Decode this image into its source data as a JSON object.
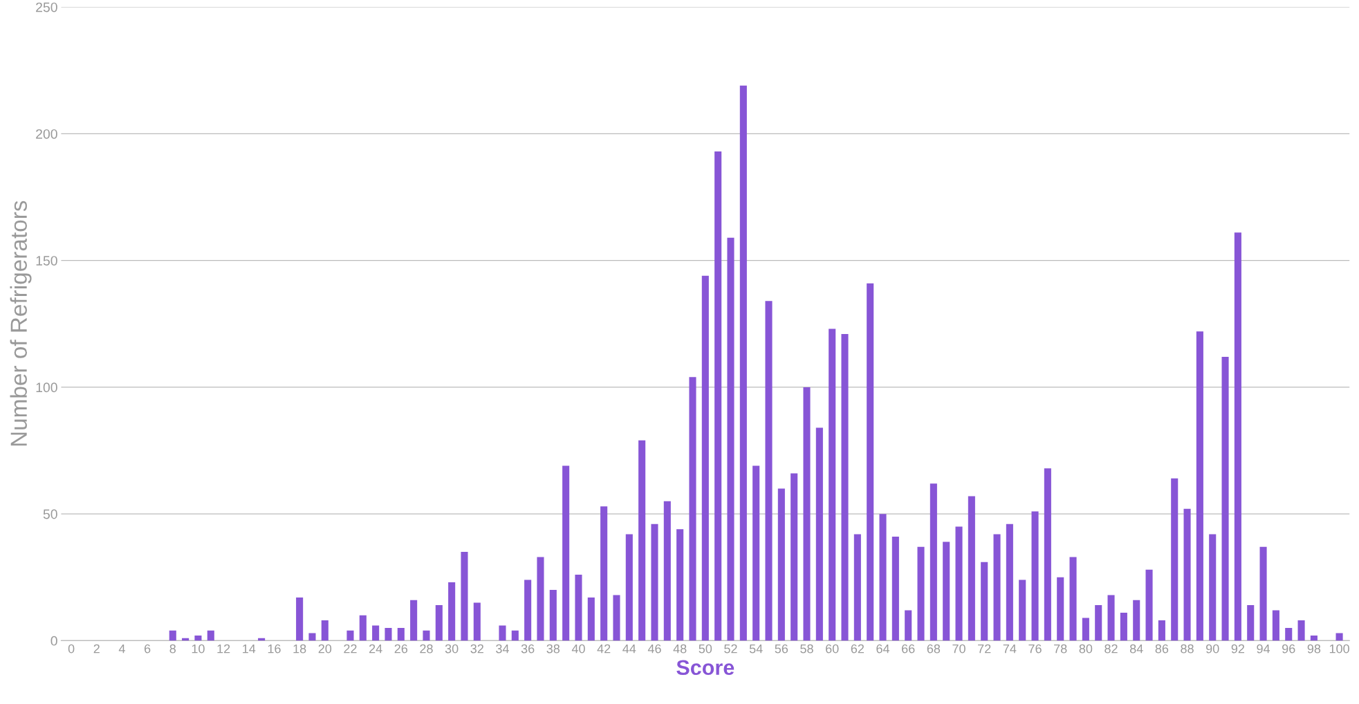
{
  "chart_data": {
    "type": "bar",
    "xlabel": "Score",
    "ylabel": "Number of Refrigerators",
    "categories": [
      "0",
      null,
      "2",
      null,
      "4",
      null,
      "6",
      null,
      "8",
      null,
      "10",
      null,
      "12",
      null,
      "14",
      null,
      "16",
      null,
      "18",
      null,
      "20",
      null,
      "22",
      null,
      "24",
      null,
      "26",
      null,
      "28",
      null,
      "30",
      null,
      "32",
      null,
      "34",
      null,
      "36",
      null,
      "38",
      null,
      "40",
      null,
      "42",
      null,
      "44",
      null,
      "46",
      null,
      "48",
      null,
      "50",
      null,
      "52",
      null,
      "54",
      null,
      "56",
      null,
      "58",
      null,
      "60",
      null,
      "62",
      null,
      "64",
      null,
      "66",
      null,
      "68",
      null,
      "70",
      null,
      "72",
      null,
      "74",
      null,
      "76",
      null,
      "78",
      null,
      "80",
      null,
      "82",
      null,
      "84",
      null,
      "86",
      null,
      "88",
      null,
      "90",
      null,
      "92",
      null,
      "94",
      null,
      "96",
      null,
      "98",
      null,
      "100"
    ],
    "values": [
      0,
      0,
      0,
      0,
      0,
      0,
      0,
      0,
      4,
      1,
      2,
      4,
      0,
      0,
      0,
      1,
      0,
      0,
      17,
      3,
      8,
      0,
      4,
      10,
      6,
      5,
      5,
      16,
      4,
      14,
      23,
      35,
      15,
      0,
      6,
      4,
      24,
      33,
      20,
      69,
      26,
      17,
      53,
      18,
      42,
      79,
      46,
      55,
      44,
      104,
      144,
      193,
      159,
      219,
      69,
      134,
      60,
      66,
      100,
      84,
      123,
      121,
      42,
      141,
      50,
      41,
      12,
      37,
      62,
      39,
      45,
      57,
      31,
      42,
      46,
      24,
      51,
      68,
      25,
      33,
      9,
      14,
      18,
      11,
      16,
      28,
      8,
      64,
      52,
      122,
      42,
      112,
      161,
      14,
      37,
      12,
      5,
      8,
      2,
      0,
      3
    ],
    "color": "#8755d6",
    "ylim": [
      0,
      250
    ],
    "yticks": [
      0,
      50,
      100,
      150,
      200,
      250
    ],
    "grid": "y"
  }
}
